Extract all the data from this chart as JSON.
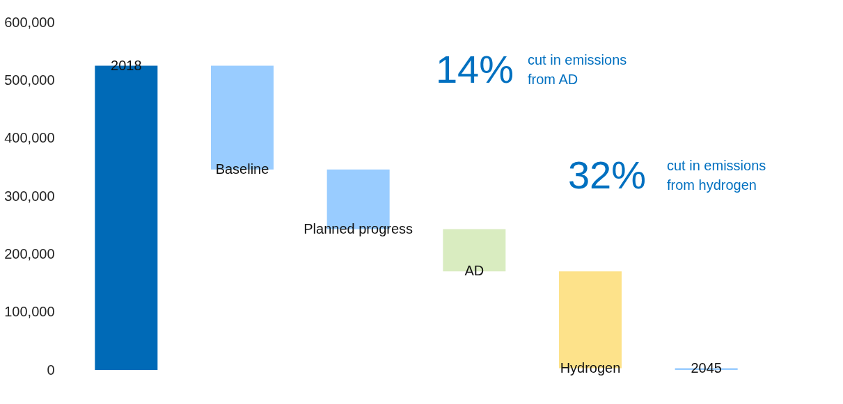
{
  "chart_data": {
    "type": "bar",
    "categories": [
      "2018",
      "Baseline",
      "Planned progress",
      "AD",
      "Hydrogen",
      "2045"
    ],
    "values": [
      525000,
      179000,
      103000,
      73000,
      167000,
      3000
    ],
    "base": [
      0,
      346000,
      243000,
      170000,
      3000,
      0
    ],
    "colors": [
      "#006ab7",
      "#99ccff",
      "#99ccff",
      "#d9ecc0",
      "#fde28a",
      "#99ccff"
    ],
    "ylim": [
      0,
      600000
    ],
    "yticks": [
      0,
      {
        "value": 100000,
        "label": "100,000"
      },
      {
        "value": 200000,
        "label": "200,000"
      },
      {
        "value": 300000,
        "label": "300,000"
      },
      {
        "value": 400000,
        "label": "400,000"
      },
      {
        "value": 500000,
        "label": "500,000"
      },
      {
        "value": 600000,
        "label": "600,000"
      }
    ],
    "grid": false,
    "annotations": [
      "14%",
      "cut in emissions\nfrom AD",
      "32%",
      "cut in emissions\nfrom hydrogen"
    ]
  }
}
